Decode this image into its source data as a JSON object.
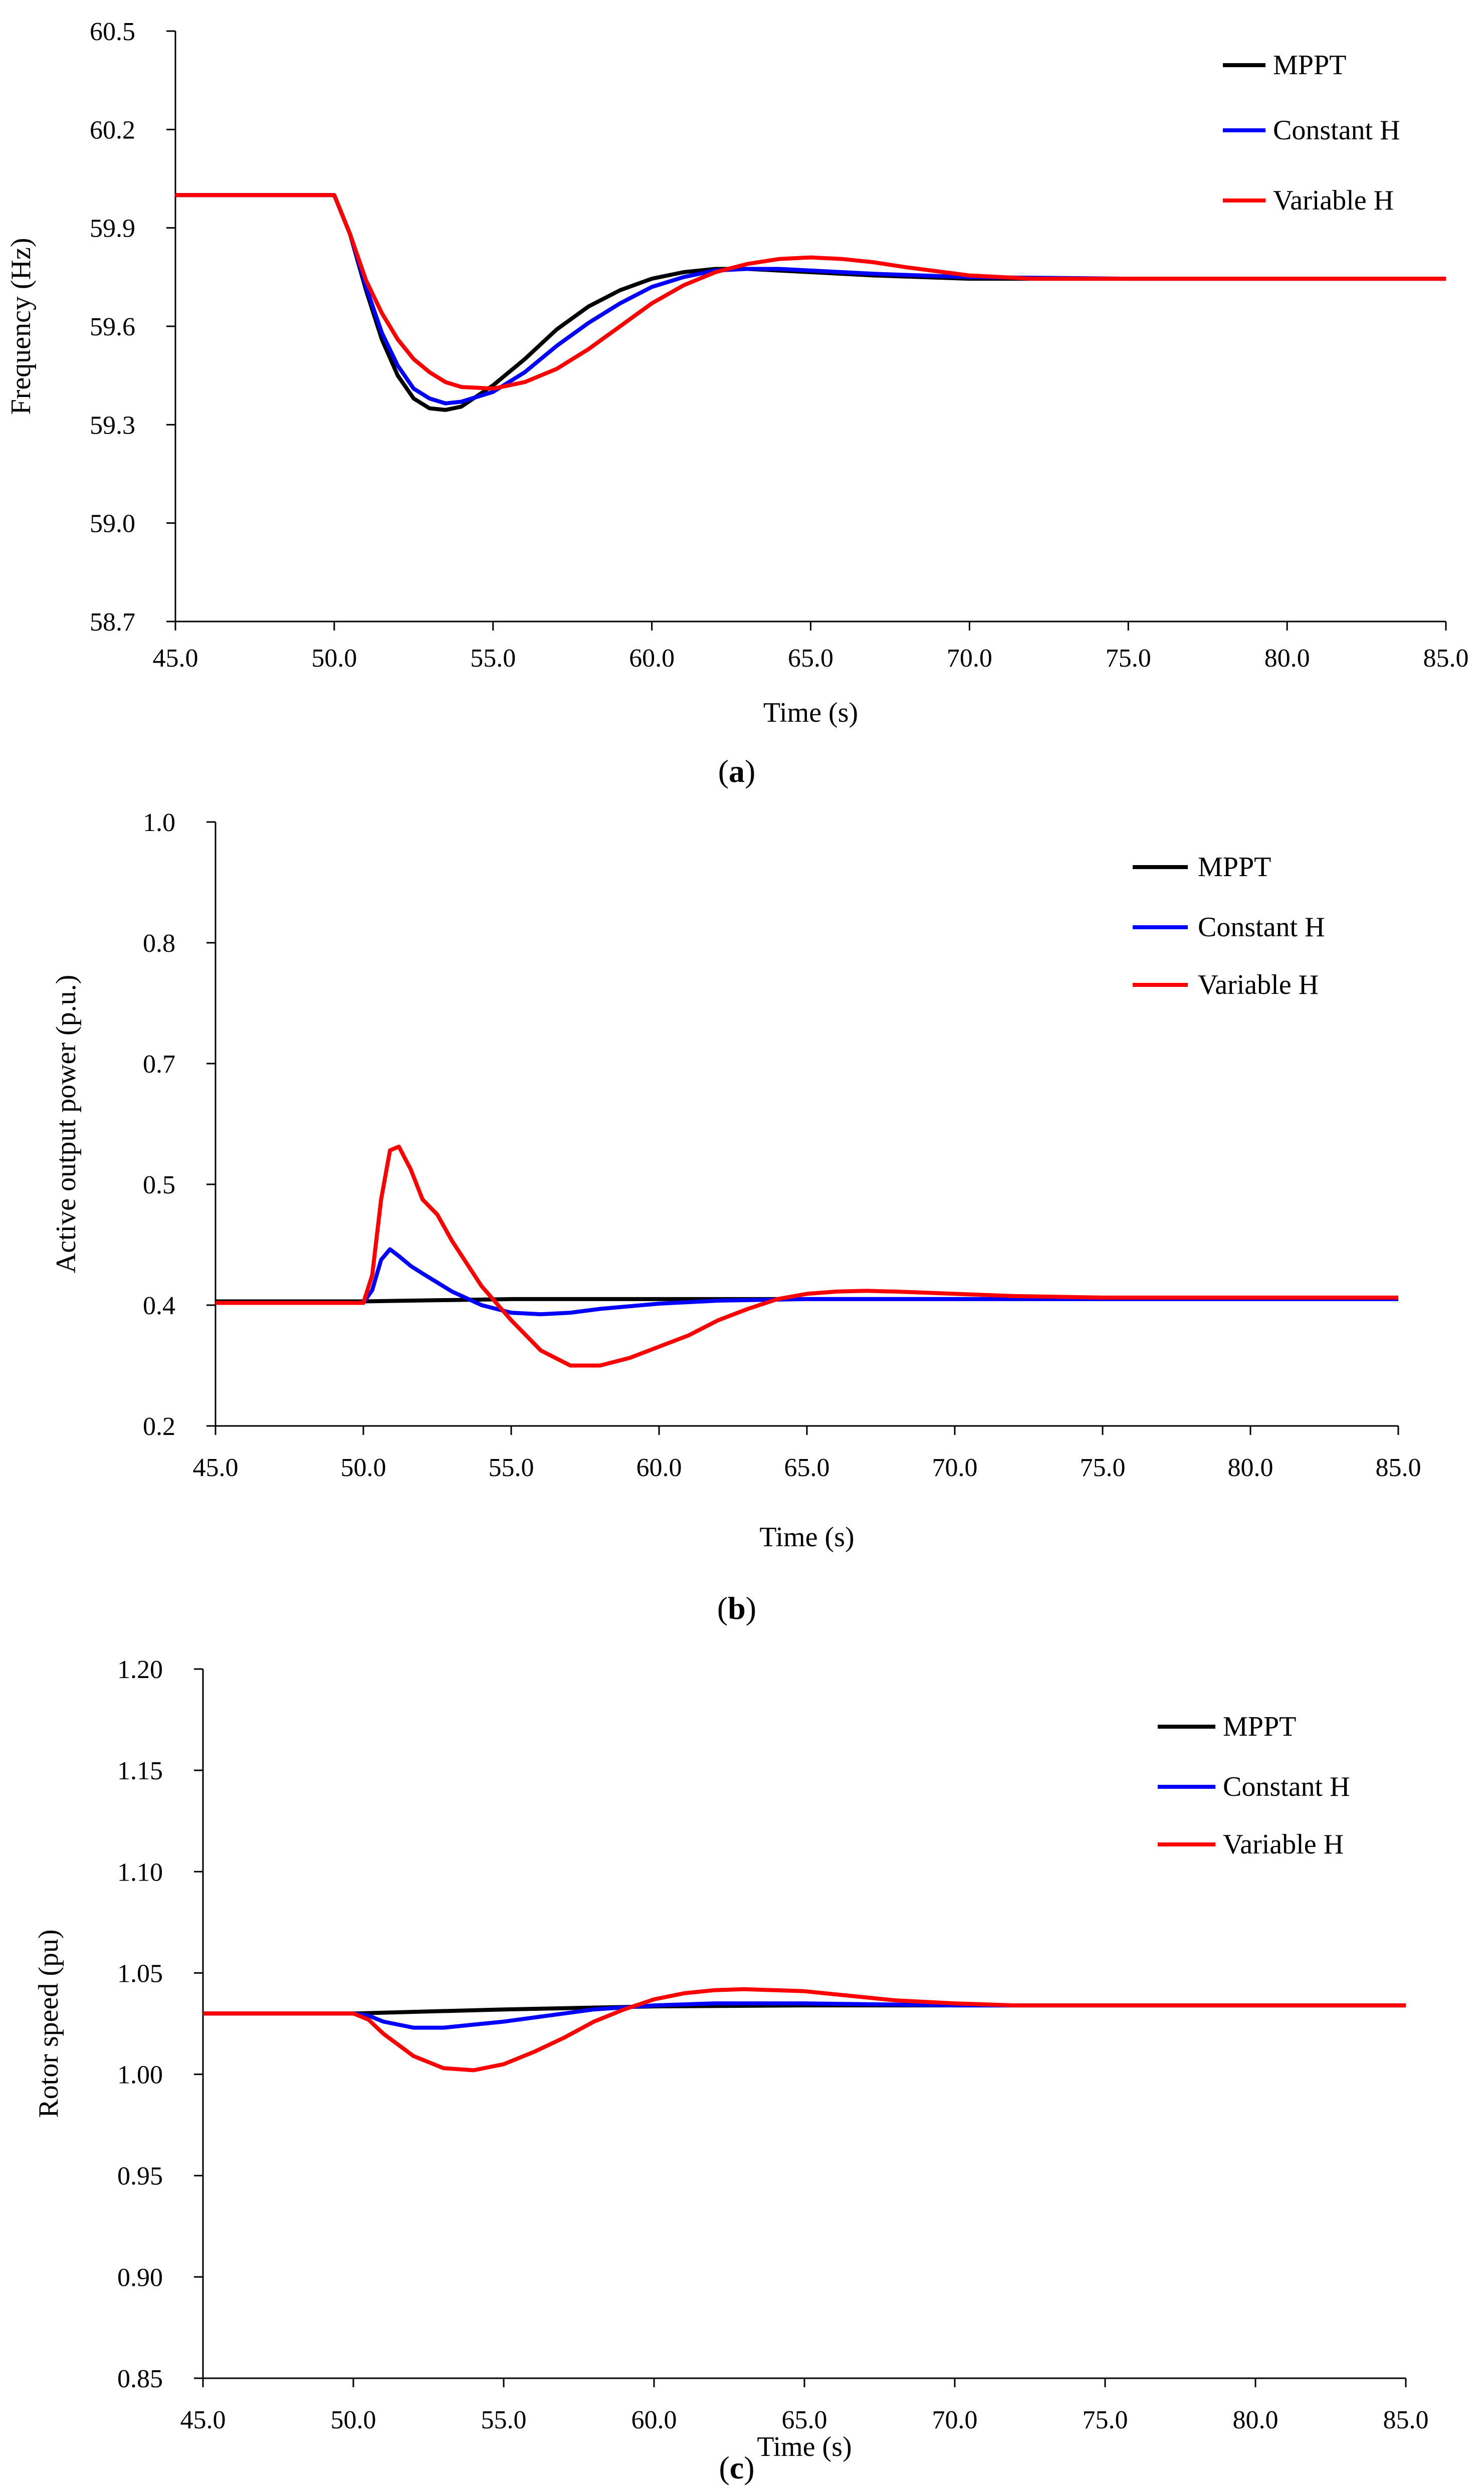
{
  "figure": {
    "panels": [
      "a",
      "b",
      "c"
    ]
  },
  "series_colors": {
    "MPPT": "#000000",
    "Constant H": "#0000ff",
    "Variable H": "#ff0000"
  },
  "chart_data": [
    {
      "id": "a",
      "type": "line",
      "caption_open": "(",
      "caption_letter": "a",
      "caption_close": ")",
      "xlabel": "Time (s)",
      "ylabel": "Frequency (Hz)",
      "xlim": [
        45,
        85
      ],
      "ylim": [
        58.7,
        60.5
      ],
      "xticks": [
        45,
        50,
        55,
        60,
        65,
        70,
        75,
        80,
        85
      ],
      "xtick_labels": [
        "45.0",
        "50.0",
        "55.0",
        "60.0",
        "65.0",
        "70.0",
        "75.0",
        "80.0",
        "85.0"
      ],
      "yticks": [
        58.7,
        59.0,
        59.3,
        59.6,
        59.9,
        60.2,
        60.5
      ],
      "ytick_labels": [
        "58.7",
        "59.0",
        "59.3",
        "59.6",
        "59.9",
        "60.2",
        "60.5"
      ],
      "legend_position": "top-right",
      "series": [
        {
          "name": "MPPT",
          "x": [
            45,
            50,
            50.5,
            51,
            51.5,
            52,
            52.5,
            53,
            53.5,
            54,
            55,
            56,
            57,
            58,
            59,
            60,
            61,
            62,
            63,
            64,
            65,
            67,
            70,
            75,
            80,
            85
          ],
          "y": [
            60.0,
            60.0,
            59.88,
            59.71,
            59.56,
            59.45,
            59.38,
            59.35,
            59.345,
            59.355,
            59.42,
            59.5,
            59.59,
            59.66,
            59.71,
            59.745,
            59.765,
            59.775,
            59.775,
            59.77,
            59.765,
            59.755,
            59.745,
            59.745,
            59.745,
            59.745
          ]
        },
        {
          "name": "Constant H",
          "x": [
            45,
            50,
            50.5,
            51,
            51.5,
            52,
            52.5,
            53,
            53.5,
            54,
            55,
            56,
            57,
            58,
            59,
            60,
            61,
            62,
            63,
            64,
            65,
            67,
            70,
            75,
            80,
            85
          ],
          "y": [
            60.0,
            60.0,
            59.88,
            59.72,
            59.58,
            59.48,
            59.41,
            59.38,
            59.365,
            59.37,
            59.4,
            59.46,
            59.54,
            59.61,
            59.67,
            59.72,
            59.75,
            59.77,
            59.775,
            59.775,
            59.77,
            59.76,
            59.75,
            59.745,
            59.745,
            59.745
          ]
        },
        {
          "name": "Variable H",
          "x": [
            45,
            50,
            50.5,
            51,
            51.5,
            52,
            52.5,
            53,
            53.5,
            54,
            55,
            56,
            57,
            58,
            59,
            60,
            61,
            62,
            63,
            64,
            65,
            66,
            67,
            68,
            70,
            72,
            75,
            80,
            85
          ],
          "y": [
            60.0,
            60.0,
            59.88,
            59.74,
            59.64,
            59.56,
            59.5,
            59.46,
            59.43,
            59.415,
            59.41,
            59.43,
            59.47,
            59.53,
            59.6,
            59.67,
            59.725,
            59.765,
            59.79,
            59.805,
            59.81,
            59.805,
            59.795,
            59.78,
            59.755,
            59.745,
            59.745,
            59.745,
            59.745
          ]
        }
      ]
    },
    {
      "id": "b",
      "type": "line",
      "caption_open": "(",
      "caption_letter": "b",
      "caption_close": ")",
      "xlabel": "Time (s)",
      "ylabel": "Active output power (p.u.)",
      "xlim": [
        45,
        85
      ],
      "ylim": [
        0.2,
        1.0
      ],
      "xticks": [
        45,
        50,
        55,
        60,
        65,
        70,
        75,
        80,
        85
      ],
      "xtick_labels": [
        "45.0",
        "50.0",
        "55.0",
        "60.0",
        "65.0",
        "70.0",
        "75.0",
        "80.0",
        "85.0"
      ],
      "yticks": [
        0.2,
        0.4,
        0.5,
        0.7,
        0.8,
        1.0
      ],
      "ytick_labels": [
        "0.2",
        "0.4",
        "0.5",
        "0.7",
        "0.8",
        "1.0"
      ],
      "ytick_positions": [
        0.0,
        0.2,
        0.4,
        0.6,
        0.8,
        1.0
      ],
      "legend_position": "top-right",
      "series": [
        {
          "name": "MPPT",
          "x": [
            45,
            50,
            55,
            60,
            65,
            70,
            75,
            80,
            85
          ],
          "y": [
            0.365,
            0.365,
            0.368,
            0.368,
            0.368,
            0.368,
            0.368,
            0.368,
            0.368
          ]
        },
        {
          "name": "Constant H",
          "x": [
            45,
            50,
            50.3,
            50.6,
            50.9,
            51.2,
            51.6,
            52,
            52.5,
            53,
            54,
            55,
            56,
            57,
            58,
            60,
            62,
            65,
            70,
            75,
            80,
            85
          ],
          "y": [
            0.363,
            0.363,
            0.38,
            0.42,
            0.434,
            0.425,
            0.412,
            0.402,
            0.39,
            0.378,
            0.36,
            0.35,
            0.348,
            0.35,
            0.355,
            0.362,
            0.366,
            0.368,
            0.368,
            0.368,
            0.368,
            0.368
          ]
        },
        {
          "name": "Variable H",
          "x": [
            45,
            50,
            50.3,
            50.6,
            50.9,
            51.2,
            51.6,
            52,
            52.5,
            53,
            53.5,
            54,
            55,
            56,
            57,
            58,
            59,
            60,
            61,
            62,
            63,
            64,
            65,
            66,
            67,
            68,
            70,
            72,
            75,
            80,
            85
          ],
          "y": [
            0.363,
            0.363,
            0.4,
            0.5,
            0.565,
            0.57,
            0.54,
            0.5,
            0.48,
            0.445,
            0.415,
            0.385,
            0.34,
            0.3,
            0.28,
            0.28,
            0.29,
            0.305,
            0.32,
            0.34,
            0.355,
            0.368,
            0.375,
            0.378,
            0.379,
            0.378,
            0.375,
            0.372,
            0.37,
            0.37,
            0.37
          ]
        }
      ]
    },
    {
      "id": "c",
      "type": "line",
      "caption_open": "(",
      "caption_letter": "c",
      "caption_close": ")",
      "xlabel": "Time (s)",
      "ylabel": "Rotor speed (pu)",
      "xlim": [
        45,
        85
      ],
      "ylim": [
        0.85,
        1.2
      ],
      "xticks": [
        45,
        50,
        55,
        60,
        65,
        70,
        75,
        80,
        85
      ],
      "xtick_labels": [
        "45.0",
        "50.0",
        "55.0",
        "60.0",
        "65.0",
        "70.0",
        "75.0",
        "80.0",
        "85.0"
      ],
      "yticks": [
        0.85,
        0.9,
        0.95,
        1.0,
        1.05,
        1.1,
        1.15,
        1.2
      ],
      "ytick_labels": [
        "0.85",
        "0.90",
        "0.95",
        "1.00",
        "1.05",
        "1.10",
        "1.15",
        "1.20"
      ],
      "legend_position": "top-right",
      "series": [
        {
          "name": "MPPT",
          "x": [
            45,
            50,
            55,
            60,
            65,
            70,
            75,
            80,
            85
          ],
          "y": [
            1.03,
            1.03,
            1.032,
            1.0335,
            1.034,
            1.034,
            1.034,
            1.034,
            1.034
          ]
        },
        {
          "name": "Constant H",
          "x": [
            45,
            50,
            50.5,
            51,
            52,
            53,
            54,
            55,
            56,
            57,
            58,
            60,
            62,
            65,
            70,
            75,
            80,
            85
          ],
          "y": [
            1.03,
            1.03,
            1.029,
            1.026,
            1.023,
            1.023,
            1.0245,
            1.026,
            1.028,
            1.03,
            1.032,
            1.034,
            1.035,
            1.035,
            1.034,
            1.034,
            1.034,
            1.034
          ]
        },
        {
          "name": "Variable H",
          "x": [
            45,
            50,
            50.5,
            51,
            52,
            53,
            54,
            55,
            56,
            57,
            58,
            59,
            60,
            61,
            62,
            63,
            64,
            65,
            66,
            67,
            68,
            70,
            72,
            75,
            80,
            85
          ],
          "y": [
            1.03,
            1.03,
            1.027,
            1.02,
            1.009,
            1.003,
            1.002,
            1.005,
            1.011,
            1.018,
            1.026,
            1.032,
            1.037,
            1.04,
            1.0415,
            1.042,
            1.0415,
            1.041,
            1.0395,
            1.038,
            1.0365,
            1.035,
            1.034,
            1.034,
            1.034,
            1.034
          ]
        }
      ]
    }
  ]
}
